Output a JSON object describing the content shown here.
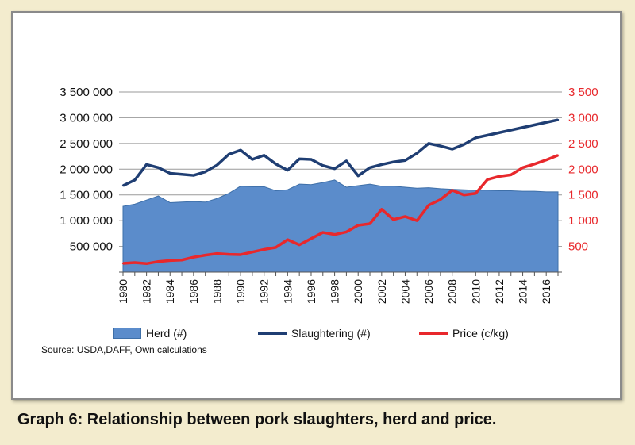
{
  "caption": "Graph 6: Relationship between pork slaughters, herd and price.",
  "source": "Source: USDA,DAFF, Own calculations",
  "colors": {
    "herd": "#5b8ccb",
    "herd_edge": "#3e6fa8",
    "slaughtering": "#1f3e73",
    "price": "#e8282c",
    "right_axis": "#e8282c"
  },
  "chart_data": {
    "type": "line",
    "title": "",
    "x": [
      1980,
      1981,
      1982,
      1983,
      1984,
      1985,
      1986,
      1987,
      1988,
      1989,
      1990,
      1991,
      1992,
      1993,
      1994,
      1995,
      1996,
      1997,
      1998,
      1999,
      2000,
      2001,
      2002,
      2003,
      2004,
      2005,
      2006,
      2007,
      2008,
      2009,
      2010,
      2011,
      2012,
      2013,
      2014,
      2015,
      2016,
      2017
    ],
    "x_tick_labels": [
      "1980",
      "1982",
      "1984",
      "1986",
      "1988",
      "1990",
      "1992",
      "1994",
      "1996",
      "1998",
      "2000",
      "2002",
      "2004",
      "2006",
      "2008",
      "2010",
      "2012",
      "2014",
      "2016"
    ],
    "y_left": {
      "range": [
        0,
        3500000
      ],
      "ticks": [
        500000,
        1000000,
        1500000,
        2000000,
        2500000,
        3000000,
        3500000
      ],
      "tick_labels": [
        "500 000",
        "1 000 000",
        "1 500 000",
        "2 000 000",
        "2 500 000",
        "3 000 000",
        "3 500 000"
      ]
    },
    "y_right": {
      "range": [
        0,
        3500
      ],
      "ticks": [
        500,
        1000,
        1500,
        2000,
        2500,
        3000,
        3500
      ],
      "tick_labels": [
        "500",
        "1 000",
        "1 500",
        "2 000",
        "2 500",
        "3 000",
        "3 500"
      ]
    },
    "grid": true,
    "legend_position": "bottom",
    "series": [
      {
        "name": "Herd (#)",
        "type": "area",
        "axis": "left",
        "values": [
          1280000,
          1320000,
          1400000,
          1480000,
          1350000,
          1360000,
          1370000,
          1360000,
          1430000,
          1530000,
          1670000,
          1660000,
          1660000,
          1580000,
          1600000,
          1710000,
          1700000,
          1740000,
          1790000,
          1650000,
          1680000,
          1710000,
          1670000,
          1670000,
          1650000,
          1630000,
          1640000,
          1620000,
          1610000,
          1600000,
          1590000,
          1590000,
          1580000,
          1580000,
          1570000,
          1570000,
          1560000,
          1560000
        ]
      },
      {
        "name": "Slaughtering (#)",
        "type": "line",
        "axis": "left",
        "values": [
          1680000,
          1790000,
          2090000,
          2030000,
          1920000,
          1900000,
          1880000,
          1950000,
          2080000,
          2290000,
          2370000,
          2190000,
          2270000,
          2100000,
          1980000,
          2200000,
          2190000,
          2070000,
          2010000,
          2160000,
          1870000,
          2030000,
          2090000,
          2140000,
          2170000,
          2310000,
          2500000,
          2450000,
          2390000,
          2480000,
          2610000,
          2660000,
          2710000,
          2760000,
          2810000,
          2860000,
          2910000,
          2960000
        ]
      },
      {
        "name": "Price (c/kg)",
        "type": "line",
        "axis": "right",
        "values": [
          170,
          185,
          165,
          205,
          225,
          235,
          290,
          330,
          360,
          345,
          340,
          390,
          440,
          480,
          630,
          530,
          650,
          770,
          730,
          780,
          910,
          940,
          1220,
          1020,
          1080,
          1000,
          1300,
          1410,
          1590,
          1500,
          1530,
          1800,
          1860,
          1890,
          2030,
          2100,
          2180,
          2270
        ]
      }
    ]
  }
}
